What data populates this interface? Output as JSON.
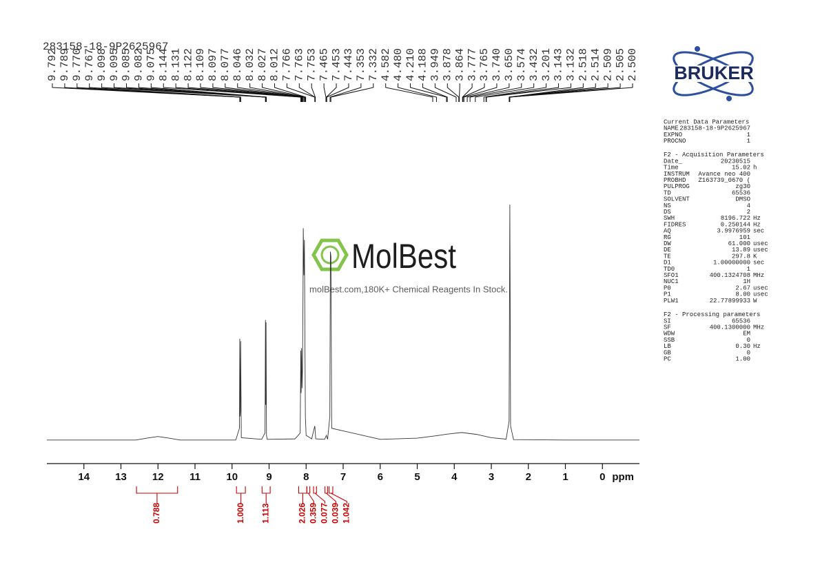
{
  "sample_id": "283158-18-9P2625967",
  "chart_data": {
    "type": "nmr",
    "x_label": "ppm",
    "xlim": [
      15,
      -1
    ],
    "ylim": [
      -10,
      105
    ],
    "xticks": [
      14,
      13,
      12,
      11,
      10,
      9,
      8,
      7,
      6,
      5,
      4,
      3,
      2,
      1,
      0
    ],
    "peaks": [
      9.792,
      9.789,
      {
        "value": 9.77,
        "label": "9.770"
      },
      9.767,
      9.098,
      9.095,
      9.085,
      9.082,
      9.075,
      8.144,
      8.131,
      8.122,
      8.109,
      8.097,
      8.077,
      8.046,
      8.032,
      8.027,
      8.012,
      7.766,
      7.763,
      7.753,
      7.465,
      7.453,
      7.443,
      7.353,
      7.332,
      4.582,
      {
        "value": 4.48,
        "label": "4.480"
      },
      {
        "value": 4.21,
        "label": "4.210"
      },
      4.188,
      3.949,
      3.878,
      3.864,
      3.777,
      3.765,
      {
        "value": 3.74,
        "label": "3.740"
      },
      {
        "value": 3.65,
        "label": "3.650"
      },
      3.574,
      3.432,
      3.201,
      3.143,
      3.132,
      2.518,
      2.514,
      2.509,
      2.505,
      {
        "value": 2.5,
        "label": "2.500"
      }
    ],
    "spectrum": {
      "color": "#333333",
      "x": [
        15,
        12.6,
        12.3,
        12.0,
        11.7,
        11.4,
        9.9,
        9.8,
        9.792,
        9.785,
        9.775,
        9.767,
        9.75,
        9.2,
        9.11,
        9.098,
        9.09,
        9.082,
        9.07,
        9.05,
        8.3,
        8.16,
        8.144,
        8.135,
        8.122,
        8.11,
        8.097,
        8.085,
        8.077,
        8.06,
        8.046,
        8.035,
        8.02,
        8.0,
        7.85,
        7.766,
        7.74,
        7.5,
        7.453,
        7.42,
        7.36,
        7.345,
        7.33,
        7.31,
        6.0,
        5.0,
        4.5,
        4.2,
        3.8,
        3.4,
        3.0,
        2.6,
        2.52,
        2.5,
        2.48,
        2.4,
        1.0,
        -1
      ],
      "values": [
        0,
        0,
        0.8,
        1.5,
        0.8,
        0,
        0,
        5,
        43,
        10,
        12,
        42,
        1,
        0.3,
        3,
        51,
        15,
        50,
        2,
        0.3,
        0.5,
        3,
        38,
        20,
        39,
        22,
        30,
        60,
        90,
        70,
        85,
        50,
        10,
        2,
        0.5,
        6,
        0.5,
        0.3,
        2,
        0.3,
        10,
        80,
        78,
        5,
        0.3,
        0.8,
        1.8,
        2.5,
        3.2,
        2.4,
        1,
        0.4,
        8,
        100,
        6,
        0.2,
        0,
        0
      ]
    },
    "integrals": {
      "color": "#cc0000",
      "ranges": [
        [
          12.58,
          11.47
        ],
        [
          9.88,
          9.64
        ],
        [
          9.19,
          8.97
        ],
        [
          8.2,
          7.98
        ],
        [
          7.98,
          7.9
        ],
        [
          7.8,
          7.72
        ],
        [
          7.49,
          7.42
        ],
        [
          7.38,
          7.28
        ]
      ],
      "values": [
        0.788,
        1,
        1.113,
        2.026,
        0.359,
        0.077,
        0.039,
        1.042
      ],
      "value_labels": [
        "0.788",
        "1.000",
        "1.113",
        "2.026",
        "0.359",
        "0.077",
        "0.039",
        "1.042"
      ]
    }
  },
  "watermark": {
    "brand": "MolBest",
    "tagline": "molBest.com,180K+ Chemical Reagents In Stock."
  },
  "logo": "BRUKER",
  "parameters": [
    {
      "title": "Current Data Parameters",
      "rows": [
        [
          "NAME",
          "283158-18-9P2625967"
        ],
        [
          "EXPNO",
          "1"
        ],
        [
          "PROCNO",
          "1"
        ]
      ]
    },
    {
      "title": "F2 - Acquisition Parameters",
      "rows": [
        [
          "Date_",
          "20230515"
        ],
        [
          "Time",
          "15.02",
          "h"
        ],
        [
          "INSTRUM",
          "Avance neo 400"
        ],
        [
          "PROBHD",
          "Z163739_0670 ("
        ],
        [
          "PULPROG",
          "zg30"
        ],
        [
          "TD",
          "65536"
        ],
        [
          "SOLVENT",
          "DMSO"
        ],
        [
          "NS",
          "4"
        ],
        [
          "DS",
          "2"
        ],
        [
          "SWH",
          "8196.722",
          "Hz"
        ],
        [
          "FIDRES",
          "0.250144",
          "Hz"
        ],
        [
          "AQ",
          "3.9976959",
          "sec"
        ],
        [
          "RG",
          "101"
        ],
        [
          "DW",
          "61.000",
          "usec"
        ],
        [
          "DE",
          "13.89",
          "usec"
        ],
        [
          "TE",
          "297.8",
          "K"
        ],
        [
          "D1",
          "1.00000000",
          "sec"
        ],
        [
          "TD0",
          "1"
        ],
        [
          "SFO1",
          "400.1324708",
          "MHz"
        ],
        [
          "NUC1",
          "1H"
        ],
        [
          "P0",
          "2.67",
          "usec"
        ],
        [
          "P1",
          "8.00",
          "usec"
        ],
        [
          "PLW1",
          "22.77899933",
          "W"
        ]
      ]
    },
    {
      "title": "F2 - Processing parameters",
      "rows": [
        [
          "SI",
          "65536"
        ],
        [
          "SF",
          "400.1300000",
          "MHz"
        ],
        [
          "WDW",
          "EM"
        ],
        [
          "SSB",
          "0"
        ],
        [
          "LB",
          "0.30",
          "Hz"
        ],
        [
          "GB",
          "0"
        ],
        [
          "PC",
          "1.00"
        ]
      ]
    }
  ]
}
